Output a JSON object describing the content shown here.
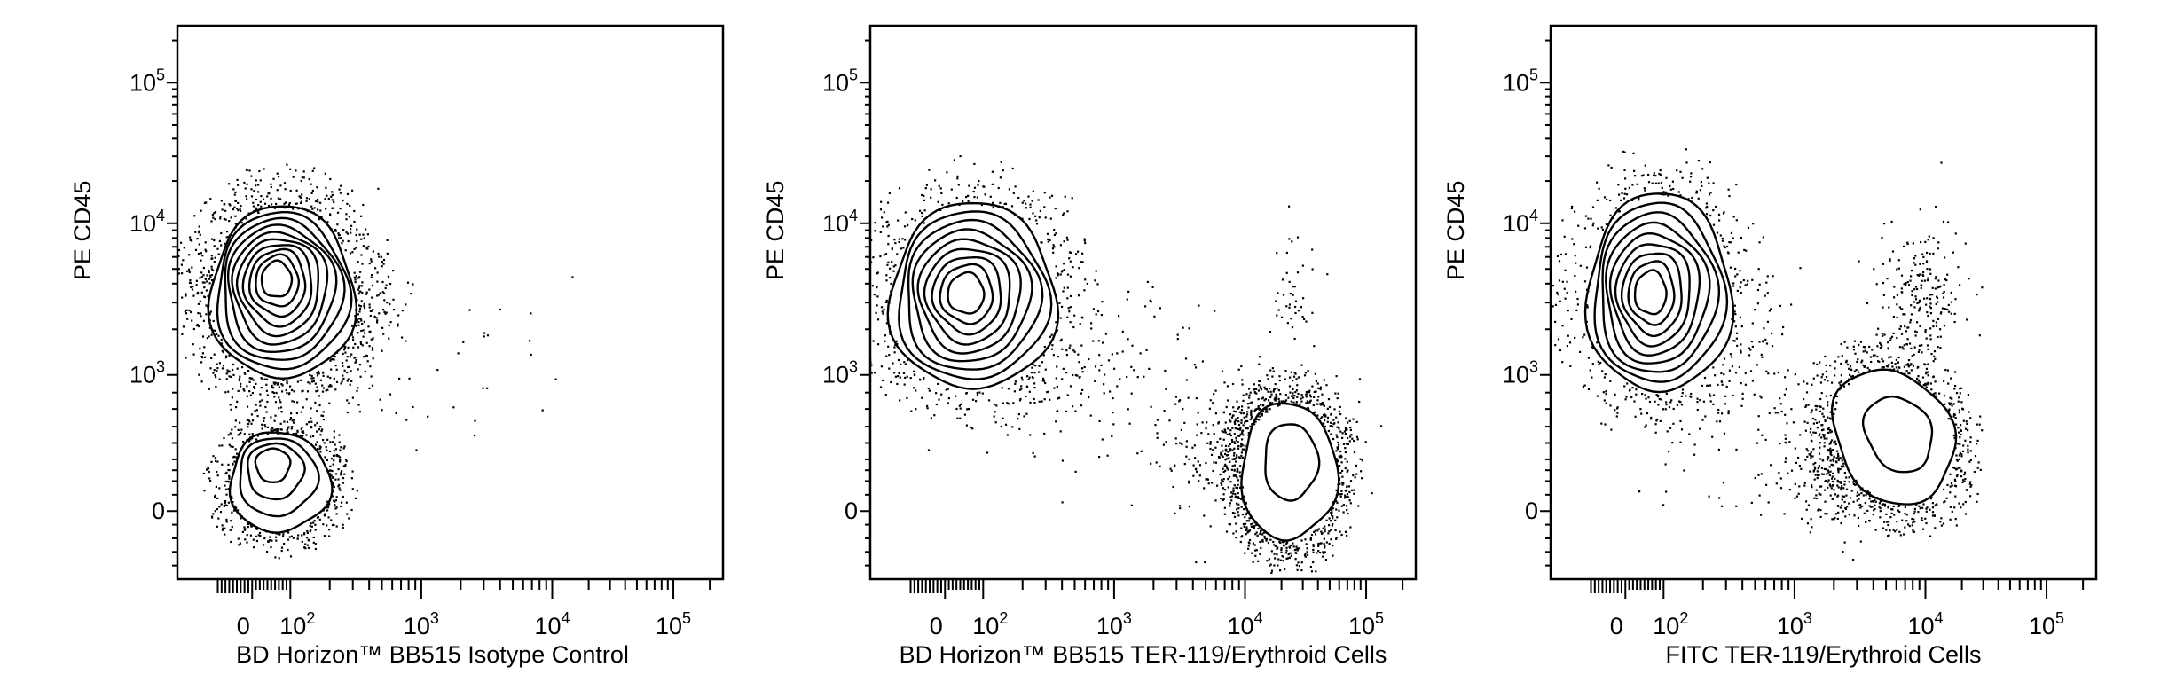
{
  "chart_data": [
    {
      "type": "scatter",
      "subtype": "flow-cytometry contour plot with outlier dots",
      "xlabel": "BD Horizon™ BB515 Isotype Control",
      "ylabel": "PE CD45",
      "x_scale": "logicle",
      "y_scale": "logicle",
      "x_ticks": [
        {
          "base": "0",
          "exp": ""
        },
        {
          "base": "10",
          "exp": "2"
        },
        {
          "base": "10",
          "exp": "3"
        },
        {
          "base": "10",
          "exp": "4"
        },
        {
          "base": "10",
          "exp": "5"
        }
      ],
      "y_ticks": [
        {
          "base": "0",
          "exp": ""
        },
        {
          "base": "10",
          "exp": "3"
        },
        {
          "base": "10",
          "exp": "4"
        },
        {
          "base": "10",
          "exp": "5"
        }
      ],
      "populations": [
        {
          "center": [
            60,
            4500
          ],
          "x_range": [
            -110,
            310
          ],
          "y_range": [
            900,
            13000
          ],
          "contour_levels": 10,
          "tilt": 0,
          "halo_events": 700
        },
        {
          "center": [
            45,
            120
          ],
          "x_range": [
            -60,
            200
          ],
          "y_range": [
            -30,
            240
          ],
          "contour_levels": 4,
          "tilt": 0,
          "halo_events": 420
        }
      ],
      "clouds": [
        {
          "x_range": [
            100,
            900
          ],
          "y_range": [
            200,
            12000
          ],
          "events": 70
        },
        {
          "x_range": [
            800,
            25000
          ],
          "y_range": [
            100,
            8000
          ],
          "events": 22
        }
      ]
    },
    {
      "type": "scatter",
      "subtype": "flow-cytometry contour plot with outlier dots",
      "xlabel": "BD Horizon™ BB515 TER-119/Erythroid Cells",
      "ylabel": "PE CD45",
      "x_scale": "logicle",
      "y_scale": "logicle",
      "x_ticks": [
        {
          "base": "0",
          "exp": ""
        },
        {
          "base": "10",
          "exp": "2"
        },
        {
          "base": "10",
          "exp": "3"
        },
        {
          "base": "10",
          "exp": "4"
        },
        {
          "base": "10",
          "exp": "5"
        }
      ],
      "y_ticks": [
        {
          "base": "0",
          "exp": ""
        },
        {
          "base": "10",
          "exp": "3"
        },
        {
          "base": "10",
          "exp": "4"
        },
        {
          "base": "10",
          "exp": "5"
        }
      ],
      "populations": [
        {
          "center": [
            50,
            3500
          ],
          "x_range": [
            -144,
            360
          ],
          "y_range": [
            700,
            13700
          ],
          "contour_levels": 9,
          "tilt": 0,
          "halo_events": 420
        },
        {
          "center": [
            25000,
            150
          ],
          "x_range": [
            9300,
            57000
          ],
          "y_range": [
            -45,
            505
          ],
          "contour_levels": 2,
          "tilt": 0,
          "halo_events": 650
        }
      ],
      "clouds": [
        {
          "x_range": [
            100,
            5000
          ],
          "y_range": [
            50,
            6000
          ],
          "events": 150
        },
        {
          "x_range": [
            3000,
            60000
          ],
          "y_range": [
            -20,
            1000
          ],
          "events": 260
        },
        {
          "x_range": [
            15000,
            40000
          ],
          "y_range": [
            1500,
            9000
          ],
          "events": 40
        }
      ]
    },
    {
      "type": "scatter",
      "subtype": "flow-cytometry contour plot with outlier dots",
      "xlabel": "FITC TER-119/Erythroid Cells",
      "ylabel": "PE CD45",
      "x_scale": "logicle",
      "y_scale": "logicle",
      "x_ticks": [
        {
          "base": "0",
          "exp": ""
        },
        {
          "base": "10",
          "exp": "2"
        },
        {
          "base": "10",
          "exp": "3"
        },
        {
          "base": "10",
          "exp": "4"
        },
        {
          "base": "10",
          "exp": "5"
        }
      ],
      "y_ticks": [
        {
          "base": "0",
          "exp": ""
        },
        {
          "base": "10",
          "exp": "3"
        },
        {
          "base": "10",
          "exp": "4"
        },
        {
          "base": "10",
          "exp": "5"
        }
      ],
      "populations": [
        {
          "center": [
            60,
            3500
          ],
          "x_range": [
            -100,
            330
          ],
          "y_range": [
            650,
            16000
          ],
          "contour_levels": 9,
          "tilt": 0,
          "halo_events": 380
        },
        {
          "center": [
            7000,
            250
          ],
          "x_range": [
            2100,
            16000
          ],
          "y_range": [
            5,
            1150
          ],
          "contour_levels": 2,
          "tilt": -30,
          "halo_events": 520
        }
      ],
      "clouds": [
        {
          "x_range": [
            100,
            3000
          ],
          "y_range": [
            0,
            3000
          ],
          "events": 120
        },
        {
          "x_range": [
            4000,
            20000
          ],
          "y_range": [
            1000,
            10000
          ],
          "events": 230
        },
        {
          "x_range": [
            800,
            6000
          ],
          "y_range": [
            -30,
            600
          ],
          "events": 200
        }
      ]
    }
  ]
}
